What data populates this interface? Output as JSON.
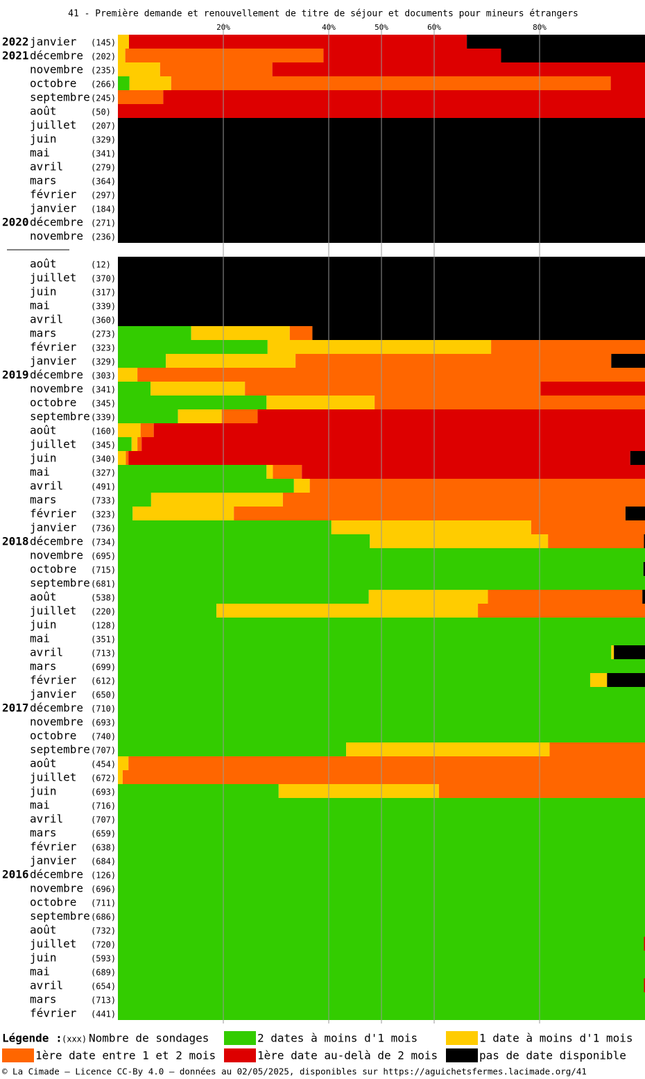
{
  "chart_data": {
    "type": "stacked-barh",
    "title": "41 - Première demande et renouvellement de titre de séjour et documents pour mineurs étrangers",
    "xlim": [
      0,
      100
    ],
    "xticks": [
      {
        "value": 20,
        "label": "20%"
      },
      {
        "value": 40,
        "label": "40%"
      },
      {
        "value": 50,
        "label": "50%"
      },
      {
        "value": 60,
        "label": "60%"
      },
      {
        "value": 80,
        "label": "80%"
      }
    ],
    "grid": true,
    "years": [
      "2022",
      "2021",
      null,
      null,
      null,
      null,
      null,
      null,
      null,
      null,
      null,
      null,
      null,
      "2020",
      null,
      null,
      null,
      null,
      null,
      null,
      null,
      null,
      null,
      null,
      "2019",
      null,
      null,
      null,
      null,
      null,
      null,
      null,
      null,
      null,
      null,
      null,
      "2018",
      null,
      null,
      null,
      null,
      null,
      null,
      null,
      null,
      null,
      null,
      null,
      "2017",
      null,
      null,
      null,
      null,
      null,
      null,
      null,
      null,
      null,
      null,
      null,
      "2016",
      null,
      null,
      null,
      null,
      null,
      null,
      null,
      null,
      null,
      null
    ],
    "categories": [
      "janvier",
      "décembre",
      "novembre",
      "octobre",
      "septembre",
      "août",
      "juillet",
      "juin",
      "mai",
      "avril",
      "mars",
      "février",
      "janvier",
      "décembre",
      "novembre",
      null,
      "août",
      "juillet",
      "juin",
      "mai",
      "avril",
      "mars",
      "février",
      "janvier",
      "décembre",
      "novembre",
      "octobre",
      "septembre",
      "août",
      "juillet",
      "juin",
      "mai",
      "avril",
      "mars",
      "février",
      "janvier",
      "décembre",
      "novembre",
      "octobre",
      "septembre",
      "août",
      "juillet",
      "juin",
      "mai",
      "avril",
      "mars",
      "février",
      "janvier",
      "décembre",
      "novembre",
      "octobre",
      "septembre",
      "août",
      "juillet",
      "juin",
      "mai",
      "avril",
      "mars",
      "février",
      "janvier",
      "décembre",
      "novembre",
      "octobre",
      "septembre",
      "août",
      "juillet",
      "juin",
      "mai",
      "avril",
      "mars",
      "février"
    ],
    "counts": [
      "(145)",
      "(202)",
      "(235)",
      "(266)",
      "(245)",
      "(50)",
      "(207)",
      "(329)",
      "(341)",
      "(279)",
      "(364)",
      "(297)",
      "(184)",
      "(271)",
      "(236)",
      null,
      "(12)",
      "(370)",
      "(317)",
      "(339)",
      "(360)",
      "(273)",
      "(323)",
      "(329)",
      "(303)",
      "(341)",
      "(345)",
      "(339)",
      "(160)",
      "(345)",
      "(340)",
      "(327)",
      "(491)",
      "(733)",
      "(323)",
      "(736)",
      "(734)",
      "(695)",
      "(715)",
      "(681)",
      "(538)",
      "(220)",
      "(128)",
      "(351)",
      "(713)",
      "(699)",
      "(612)",
      "(650)",
      "(710)",
      "(693)",
      "(740)",
      "(707)",
      "(454)",
      "(672)",
      "(693)",
      "(716)",
      "(707)",
      "(659)",
      "(638)",
      "(684)",
      "(126)",
      "(696)",
      "(711)",
      "(686)",
      "(732)",
      "(720)",
      "(593)",
      "(689)",
      "(654)",
      "(713)",
      "(441)"
    ],
    "series": [
      {
        "name": "2 dates à moins d'1 mois",
        "color": "#33cc00",
        "values": [
          0,
          0,
          0,
          2.2,
          0,
          0,
          0,
          0,
          0,
          0,
          0,
          0,
          0,
          0,
          0,
          null,
          0,
          0,
          0,
          0,
          0,
          13.9,
          28.4,
          9.1,
          0,
          6.2,
          28.2,
          11.4,
          0,
          2.6,
          0,
          28.2,
          33.4,
          6.3,
          2.8,
          40.5,
          47.8,
          100,
          99.7,
          100,
          47.6,
          18.7,
          100,
          100,
          93.6,
          100,
          89.6,
          100,
          100,
          100,
          100,
          43.3,
          0,
          0,
          30.5,
          100,
          100,
          100,
          100,
          100,
          100,
          100,
          100,
          100,
          100,
          99.8,
          100,
          100,
          99.8,
          100,
          100
        ]
      },
      {
        "name": "1 date à moins d'1 mois",
        "color": "#ffcc00",
        "values": [
          2.1,
          1.4,
          8.0,
          7.9,
          0,
          0,
          0,
          0,
          0,
          0,
          0,
          0,
          0,
          0,
          0,
          null,
          0,
          0,
          0,
          0,
          0,
          18.7,
          42.4,
          24.6,
          3.7,
          17.9,
          20.5,
          8.3,
          4.3,
          1.1,
          1.5,
          1.2,
          3.0,
          25.0,
          19.2,
          37.9,
          33.8,
          0,
          0,
          0,
          22.6,
          49.6,
          0,
          0,
          0.5,
          0,
          3.2,
          0,
          0,
          0,
          0,
          38.6,
          2.0,
          0.9,
          30.4,
          0,
          0,
          0,
          0,
          0,
          0,
          0,
          0,
          0,
          0,
          0,
          0,
          0,
          0,
          0,
          0
        ]
      },
      {
        "name": "1ère date entre 1 et 2 mois",
        "color": "#ff6600",
        "values": [
          0,
          37.6,
          21.3,
          83.4,
          8.6,
          0,
          0,
          0,
          0,
          0,
          0,
          0,
          0,
          0,
          0,
          null,
          0,
          0,
          0,
          0,
          0,
          4.3,
          29.2,
          59.9,
          96.3,
          56.1,
          51.3,
          6.8,
          2.5,
          0.8,
          0.5,
          5.5,
          63.6,
          68.7,
          74.3,
          21.6,
          18.2,
          0,
          0,
          0,
          29.3,
          31.7,
          0,
          0,
          0,
          0,
          0,
          0,
          0,
          0,
          0,
          18.1,
          98.0,
          99.1,
          39.1,
          0,
          0,
          0,
          0,
          0,
          0,
          0,
          0,
          0,
          0,
          0,
          0,
          0,
          0,
          0,
          0
        ]
      },
      {
        "name": "1ère date au-delà de 2 mois",
        "color": "#dd0000",
        "values": [
          64.1,
          33.7,
          70.7,
          6.5,
          91.4,
          100,
          0,
          0,
          0,
          0,
          0,
          0,
          0,
          0,
          0,
          null,
          0,
          0,
          0,
          0,
          0,
          0,
          0,
          0,
          0,
          19.8,
          0,
          73.5,
          93.2,
          95.5,
          95.2,
          65.1,
          0,
          0,
          0,
          0,
          0,
          0,
          0,
          0,
          0,
          0,
          0,
          0,
          0,
          0,
          0,
          0,
          0,
          0,
          0,
          0,
          0,
          0,
          0,
          0,
          0,
          0,
          0,
          0,
          0,
          0,
          0,
          0,
          0,
          0.2,
          0,
          0,
          0.2,
          0,
          0
        ]
      },
      {
        "name": "pas de date disponible",
        "color": "#000000",
        "values": [
          33.8,
          27.3,
          0,
          0,
          0,
          0,
          100,
          100,
          100,
          100,
          100,
          100,
          100,
          100,
          100,
          null,
          100,
          100,
          100,
          100,
          100,
          63.1,
          0,
          6.4,
          0,
          0,
          0,
          0,
          0,
          0,
          2.8,
          0,
          0,
          0,
          3.7,
          0,
          0.2,
          0,
          0.3,
          0,
          0.5,
          0,
          0,
          0,
          5.9,
          0,
          7.2,
          0,
          0,
          0,
          0,
          0,
          0,
          0,
          0,
          0,
          0,
          0,
          0,
          0,
          0,
          0,
          0,
          0,
          0,
          0,
          0,
          0,
          0,
          0,
          0
        ]
      }
    ],
    "legend_title": "Légende :",
    "legend_count_symbol": "(xxx)",
    "legend_count_text": "Nombre de sondages",
    "footer": "© La Cimade — Licence CC-By 4.0 — données au 02/05/2025, disponibles sur https://aguichetsfermes.lacimade.org/41"
  }
}
